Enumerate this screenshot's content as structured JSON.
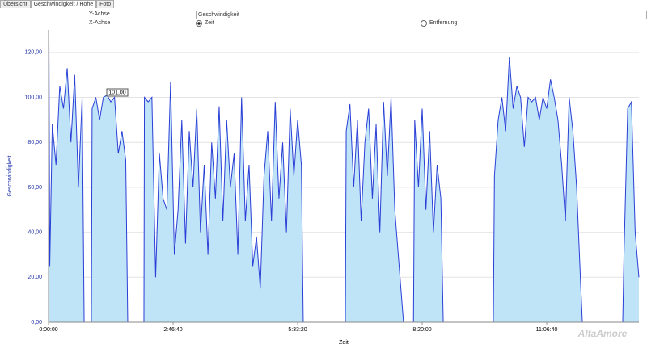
{
  "tabs": [
    "Übersicht",
    "Geschwindigkeit / Höhe",
    "Foto"
  ],
  "controls": {
    "y_label": "Y-Achse",
    "y_select": "Geschwindigkeit",
    "x_label": "X-Achse",
    "x_options": [
      "Zeit",
      "Entfernung"
    ]
  },
  "watermark": "AlfaAmore",
  "chart_data": {
    "type": "area",
    "x_label": "Zeit",
    "y_label": "Geschwindigkeit",
    "annotation": "101,00",
    "xlim": [
      0,
      47400
    ],
    "ylim": [
      0,
      130
    ],
    "grid": true,
    "xticks": [
      {
        "value": 0,
        "label": "0:00:00"
      },
      {
        "value": 10000,
        "label": "2:46:40"
      },
      {
        "value": 20000,
        "label": "5:33:20"
      },
      {
        "value": 30000,
        "label": "8:20:00"
      },
      {
        "value": 40000,
        "label": "11:06:40"
      }
    ],
    "yticks": [
      {
        "value": 0,
        "label": "0,00"
      },
      {
        "value": 20,
        "label": "20,00"
      },
      {
        "value": 40,
        "label": "40,00"
      },
      {
        "value": 60,
        "label": "60,00"
      },
      {
        "value": 80,
        "label": "80,00"
      },
      {
        "value": 100,
        "label": "100,00"
      },
      {
        "value": 120,
        "label": "120,00"
      }
    ],
    "series": [
      {
        "name": "Geschwindigkeit",
        "color": "#2a3fd6",
        "fill": "#bfe4f8",
        "x": [
          0,
          30,
          100,
          300,
          600,
          900,
          1200,
          1500,
          1800,
          2100,
          2400,
          2700,
          2860,
          3440,
          3500,
          3800,
          4100,
          4400,
          4700,
          5000,
          5300,
          5600,
          5900,
          6200,
          6360,
          7660,
          7700,
          8000,
          8300,
          8600,
          8900,
          9200,
          9500,
          9800,
          10100,
          10400,
          10700,
          11000,
          11300,
          11600,
          11900,
          12200,
          12500,
          12800,
          13100,
          13400,
          13700,
          14000,
          14300,
          14600,
          14900,
          15200,
          15500,
          15800,
          16100,
          16400,
          16700,
          17000,
          17300,
          17600,
          17900,
          18200,
          18500,
          18800,
          19100,
          19400,
          19700,
          20000,
          20300,
          20450,
          23830,
          23900,
          24200,
          24500,
          24800,
          25100,
          25400,
          25700,
          26000,
          26300,
          26600,
          26900,
          27200,
          27500,
          27800,
          28500,
          29300,
          29400,
          29700,
          30000,
          30300,
          30600,
          30900,
          31200,
          31500,
          31690,
          35710,
          35800,
          36100,
          36400,
          36700,
          37000,
          37300,
          37600,
          37900,
          38200,
          38500,
          38800,
          39100,
          39400,
          39700,
          40000,
          40300,
          40600,
          40900,
          41200,
          41500,
          41800,
          42100,
          42400,
          42700,
          42860,
          46100,
          46200,
          46500,
          46800,
          47100,
          47400
        ],
        "values": [
          0,
          130,
          25,
          88,
          70,
          105,
          95,
          113,
          80,
          110,
          60,
          100,
          0,
          0,
          95,
          100,
          90,
          100,
          101,
          98,
          100,
          75,
          85,
          72,
          0,
          0,
          100,
          98,
          100,
          20,
          75,
          55,
          50,
          107,
          30,
          50,
          90,
          35,
          85,
          60,
          95,
          40,
          70,
          30,
          80,
          55,
          96,
          45,
          90,
          60,
          75,
          30,
          100,
          45,
          70,
          25,
          38,
          15,
          65,
          85,
          45,
          98,
          55,
          80,
          40,
          95,
          65,
          90,
          70,
          0,
          0,
          85,
          97,
          60,
          90,
          45,
          80,
          95,
          55,
          88,
          40,
          98,
          65,
          100,
          50,
          0,
          0,
          90,
          60,
          95,
          50,
          85,
          40,
          70,
          55,
          0,
          0,
          65,
          90,
          100,
          85,
          118,
          95,
          105,
          100,
          78,
          100,
          98,
          100,
          90,
          100,
          95,
          108,
          100,
          90,
          70,
          45,
          100,
          85,
          60,
          20,
          0,
          0,
          30,
          95,
          98,
          40,
          20
        ]
      }
    ]
  }
}
